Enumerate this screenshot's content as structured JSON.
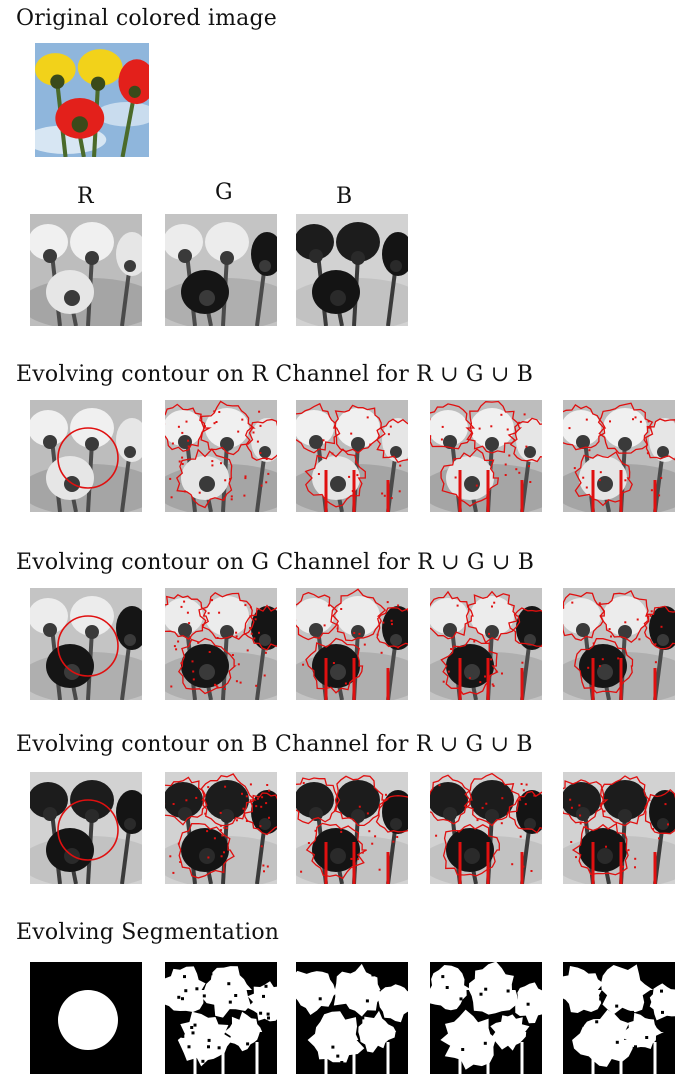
{
  "original": {
    "heading": "Original colored image"
  },
  "channels": {
    "labels": [
      "R",
      "G",
      "B"
    ]
  },
  "sections": [
    {
      "heading": "Evolving contour on R Channel for R ∪ G ∪ B",
      "channel": "R",
      "frames": 5
    },
    {
      "heading": "Evolving contour on G Channel for R ∪ G ∪ B",
      "channel": "G",
      "frames": 5
    },
    {
      "heading": "Evolving contour on B Channel for R ∪ G ∪ B",
      "channel": "B",
      "frames": 5
    }
  ],
  "segmentation": {
    "heading": "Evolving Segmentation",
    "frames": 5
  },
  "colors": {
    "contour": "#e01010",
    "petal_yellow": "#f2d21a",
    "petal_red": "#e3201b",
    "sky": "#8fb6dc",
    "stem": "#4a6a2a"
  }
}
